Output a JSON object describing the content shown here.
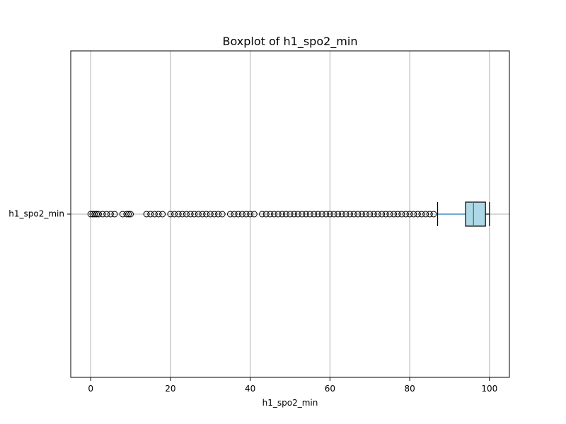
{
  "chart_data": {
    "type": "box",
    "orientation": "horizontal",
    "title": "Boxplot of h1_spo2_min",
    "xlabel": "h1_spo2_min",
    "ylabel": "",
    "category_label": "h1_spo2_min",
    "xlim": [
      -5,
      105
    ],
    "xticks": [
      0,
      20,
      40,
      60,
      80,
      100
    ],
    "xtick_labels": [
      "0",
      "20",
      "40",
      "60",
      "80",
      "100"
    ],
    "grid": true,
    "box": {
      "whisker_low": 87,
      "q1": 94,
      "median": 96,
      "q3": 99,
      "whisker_high": 100
    },
    "outliers": [
      0,
      0.5,
      1,
      1.5,
      2,
      3,
      4,
      5,
      6,
      8,
      9,
      9.5,
      10,
      14,
      15,
      16,
      17,
      18,
      20,
      21,
      22,
      23,
      24,
      25,
      26,
      27,
      28,
      29,
      30,
      31,
      32,
      33,
      35,
      36,
      37,
      38,
      39,
      40,
      41,
      43,
      44,
      45,
      46,
      47,
      48,
      49,
      50,
      51,
      52,
      53,
      54,
      55,
      56,
      57,
      58,
      59,
      60,
      61,
      62,
      63,
      64,
      65,
      66,
      67,
      68,
      69,
      70,
      71,
      72,
      73,
      74,
      75,
      76,
      77,
      78,
      79,
      80,
      81,
      82,
      83,
      84,
      85,
      86
    ],
    "colors": {
      "box_fill": "#add8e6",
      "median": "#2ca02c",
      "whisker_low": "#1f77b4",
      "grid": "#b0b0b0"
    }
  }
}
